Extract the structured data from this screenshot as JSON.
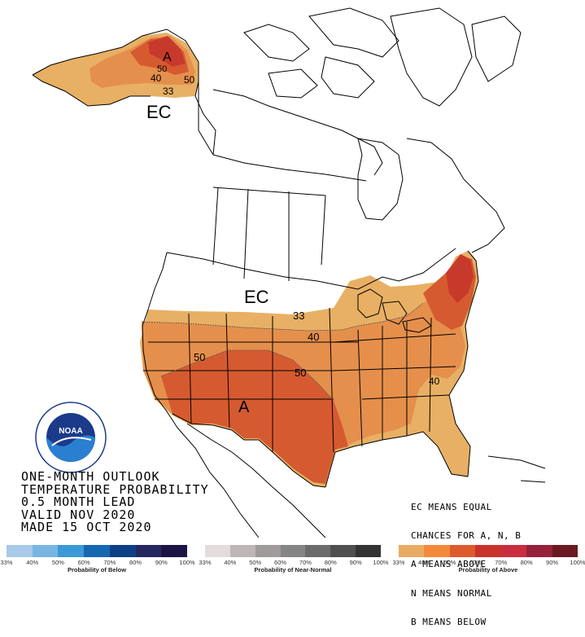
{
  "map": {
    "labels": {
      "alaska_a": "A",
      "alaska_50a": "50",
      "alaska_40": "40",
      "alaska_50b": "50",
      "alaska_33": "33",
      "canada_ec": "EC",
      "us_ec": "EC",
      "us_33": "33",
      "us_40": "40",
      "us_50_west": "50",
      "us_50_central": "50",
      "us_40_se": "40",
      "us_a": "A"
    }
  },
  "title": {
    "line1": "ONE-MONTH OUTLOOK",
    "line2": "TEMPERATURE PROBABILITY",
    "line3": "0.5 MONTH LEAD",
    "line4": "VALID NOV 2020",
    "line5": "MADE 15 OCT 2020"
  },
  "legend_note": {
    "line1": "EC MEANS EQUAL",
    "line2": "CHANCES FOR A, N, B",
    "line3": "A MEANS ABOVE",
    "line4": "N MEANS NORMAL",
    "line5": "B MEANS BELOW"
  },
  "scales": {
    "below": {
      "label": "Probability of Below",
      "ticks": [
        "33%",
        "40%",
        "50%",
        "60%",
        "70%",
        "80%",
        "90%",
        "100%"
      ],
      "colors": [
        "#a9c9e8",
        "#79b5e2",
        "#3b9ad6",
        "#1567b0",
        "#0d3f87",
        "#25285f",
        "#1d1446"
      ]
    },
    "normal": {
      "label": "Probability of Near-Normal",
      "ticks": [
        "33%",
        "40%",
        "50%",
        "60%",
        "70%",
        "80%",
        "90%",
        "100%"
      ],
      "colors": [
        "#e4dcdc",
        "#bdb7b6",
        "#9f9b9b",
        "#858585",
        "#6b6b6b",
        "#4f4f4f",
        "#333333"
      ]
    },
    "above": {
      "label": "Probability of Above",
      "ticks": [
        "33%",
        "40%",
        "50%",
        "60%",
        "70%",
        "80%",
        "90%",
        "100%"
      ],
      "colors": [
        "#e8ab62",
        "#f28a3a",
        "#de5a2e",
        "#c9332b",
        "#c92d3f",
        "#97213a",
        "#6b1a22"
      ]
    }
  },
  "colors": {
    "above_33": "#e8b064",
    "above_40": "#e58f4c",
    "above_50": "#d65a30",
    "above_60": "#c73a2b",
    "above_70": "#a82a2e"
  },
  "logo": {
    "text": "NOAA"
  }
}
